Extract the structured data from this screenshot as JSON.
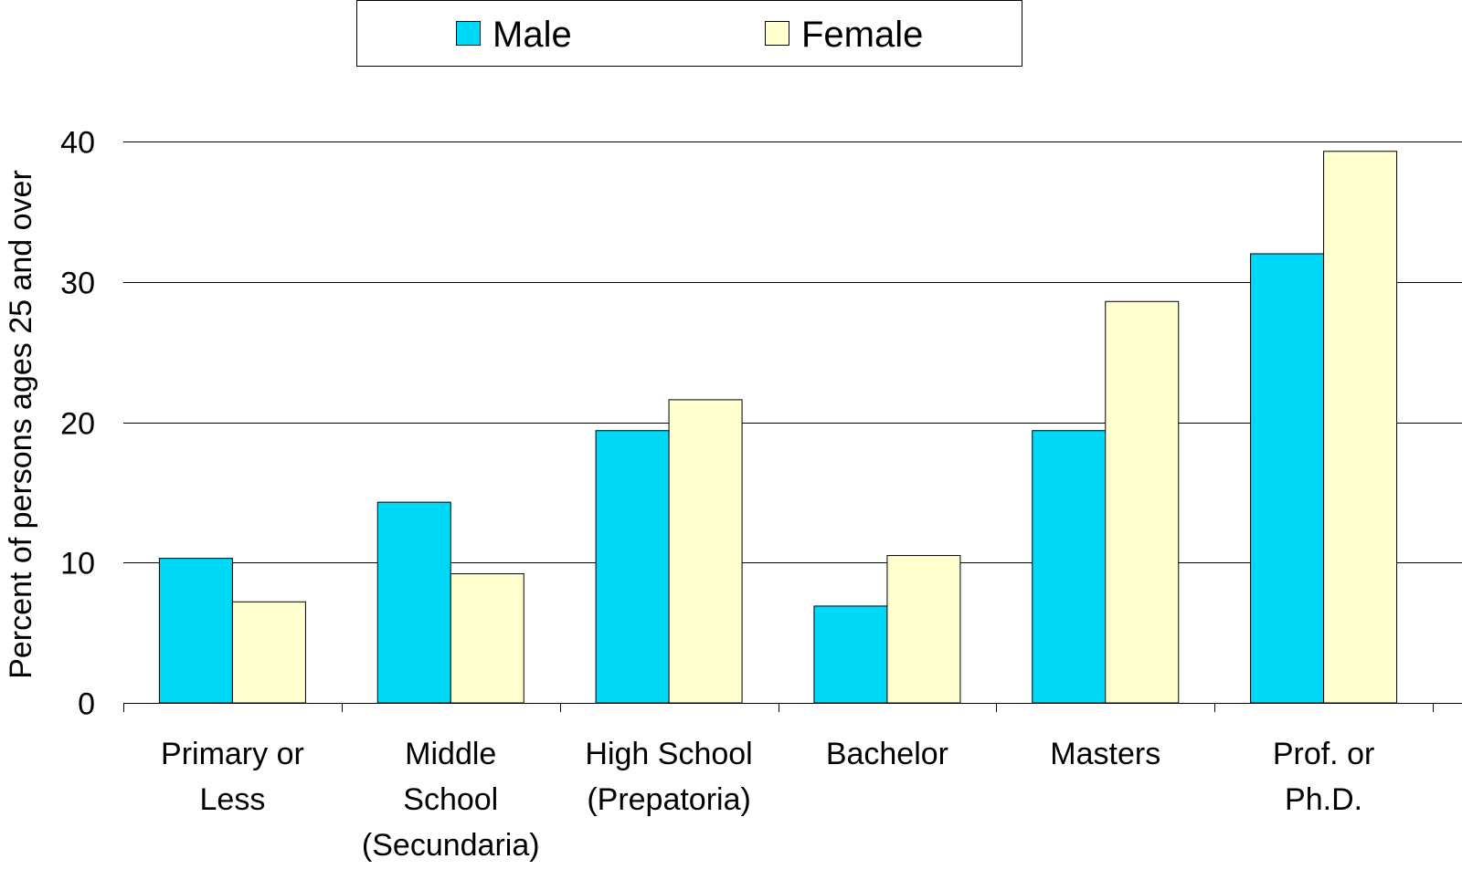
{
  "chart_data": {
    "type": "bar",
    "y_label": "Percent of persons ages 25 and over",
    "categories": [
      "Primary or\nLess",
      "Middle\nSchool\n(Secundaria)",
      "High School\n(Prepatoria)",
      "Bachelor",
      "Masters",
      "Prof. or\nPh.D."
    ],
    "series": [
      {
        "name": "Male",
        "color": "#00d8f8",
        "values": [
          10.3,
          14.3,
          19.4,
          6.9,
          19.4,
          32.0
        ]
      },
      {
        "name": "Female",
        "color": "#ffffd0",
        "values": [
          7.2,
          9.2,
          21.6,
          10.5,
          28.6,
          39.3
        ]
      }
    ],
    "ylim": [
      0,
      40
    ],
    "yticks": [
      0,
      10,
      20,
      30,
      40
    ],
    "grid": true,
    "legend": "top"
  }
}
